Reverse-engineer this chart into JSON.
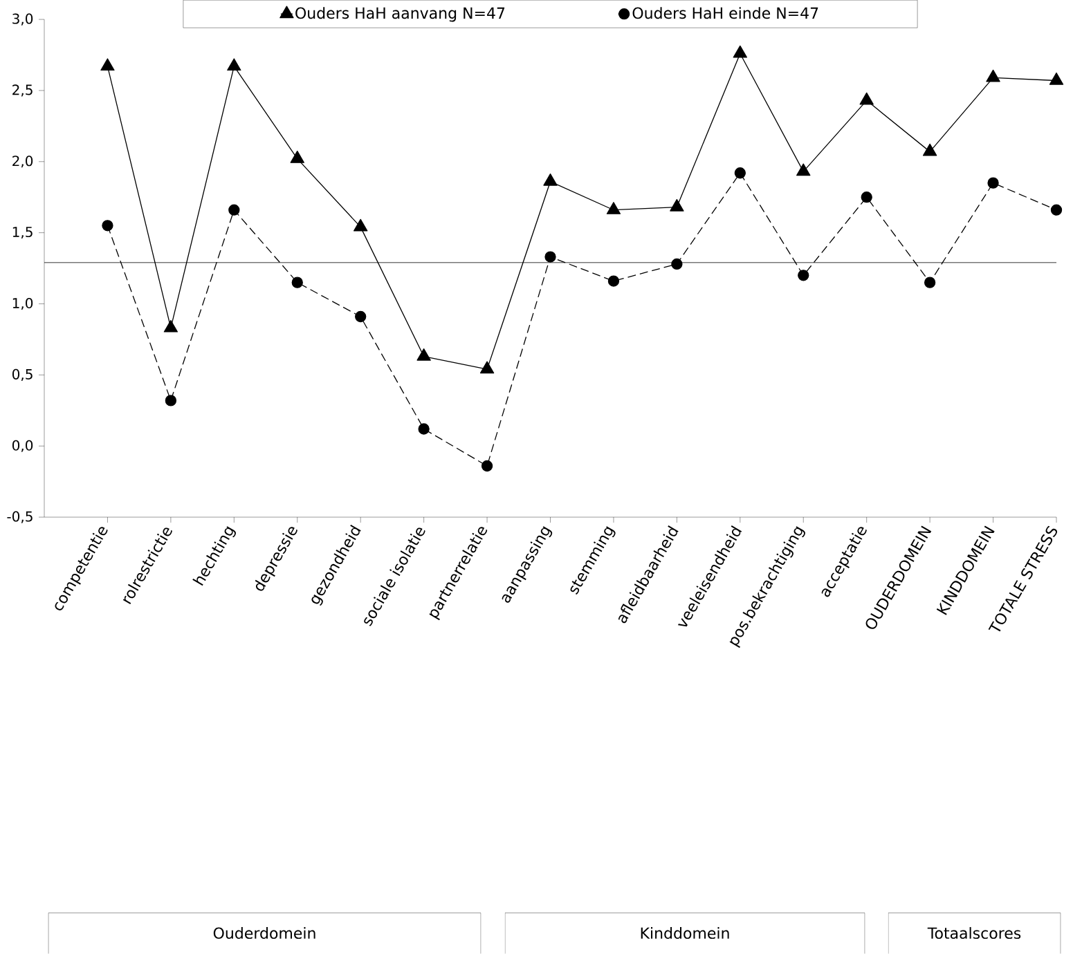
{
  "chart_data": {
    "type": "line",
    "categories": [
      "competentie",
      "rolrestrictie",
      "hechting",
      "depressie",
      "gezondheid",
      "sociale isolatie",
      "partnerrelatie",
      "aanpassing",
      "stemming",
      "afleidbaarheid",
      "veeleisendheid",
      "pos.bekrachtiging",
      "acceptatie",
      "OUDERDOMEIN",
      "KINDDOMEIN",
      "TOTALE STRESS"
    ],
    "series": [
      {
        "name": "Ouders HaH aanvang N=47",
        "color": "#000000",
        "marker": "triangle",
        "line_style": "solid",
        "values": [
          2.67,
          0.83,
          2.67,
          2.02,
          1.54,
          0.63,
          0.54,
          1.86,
          1.66,
          1.68,
          2.76,
          1.93,
          2.43,
          2.07,
          2.59,
          2.57
        ]
      },
      {
        "name": "Ouders HaH einde N=47",
        "color": "#000000",
        "marker": "circle",
        "line_style": "dashed",
        "values": [
          1.55,
          0.32,
          1.66,
          1.15,
          0.91,
          0.12,
          -0.14,
          1.33,
          1.16,
          1.28,
          1.92,
          1.2,
          1.75,
          1.15,
          1.85,
          1.66
        ]
      }
    ],
    "ylim": [
      -0.5,
      3.0
    ],
    "yticks": [
      {
        "value": -0.5,
        "label": "-0,5"
      },
      {
        "value": 0,
        "label": "0,0"
      },
      {
        "value": 0.5,
        "label": "0,5"
      },
      {
        "value": 1,
        "label": "1,0"
      },
      {
        "value": 1.5,
        "label": "1,5"
      },
      {
        "value": 2,
        "label": "2,0"
      },
      {
        "value": 2.5,
        "label": "2,5"
      },
      {
        "value": 3,
        "label": "3,0"
      }
    ],
    "ref_lines": [
      {
        "axis": "y",
        "value": 1.29,
        "color": "#000000"
      }
    ],
    "legend": "top",
    "grid": false,
    "annotations": [
      "Ouderdomein",
      "Kinddomein",
      "Totaalscores"
    ]
  }
}
